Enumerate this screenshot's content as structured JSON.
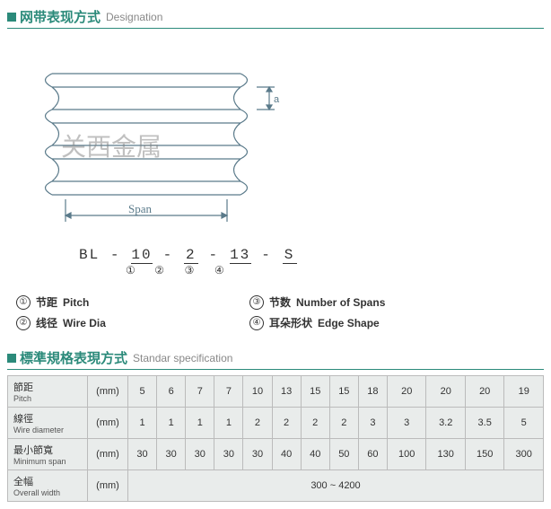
{
  "designation": {
    "header_zh": "网带表现方式",
    "header_en": "Designation",
    "diagram": {
      "span_label": "Span",
      "dim_a": "a",
      "watermark": "关西金属",
      "stroke": "#5a7a8a"
    },
    "code": {
      "prefix": "BL",
      "sep": "-",
      "parts": [
        "10",
        "2",
        "13",
        "S"
      ],
      "indices": [
        "①",
        "②",
        "③",
        "④"
      ]
    },
    "legend": [
      {
        "idx": "①",
        "zh": "节距",
        "en": "Pitch"
      },
      {
        "idx": "②",
        "zh": "线径",
        "en": "Wire Dia"
      },
      {
        "idx": "③",
        "zh": "节数",
        "en": "Number of Spans"
      },
      {
        "idx": "④",
        "zh": "耳朵形状",
        "en": "Edge Shape"
      }
    ]
  },
  "spec": {
    "header_zh": "標準規格表現方式",
    "header_en": "Standar specification",
    "unit_label": "(mm)",
    "rows": [
      {
        "zh": "節距",
        "en": "Pitch",
        "vals": [
          "5",
          "6",
          "7",
          "7",
          "10",
          "13",
          "15",
          "15",
          "18",
          "20",
          "20",
          "20",
          "19"
        ]
      },
      {
        "zh": "線徑",
        "en": "Wire diameter",
        "vals": [
          "1",
          "1",
          "1",
          "1",
          "2",
          "2",
          "2",
          "2",
          "3",
          "3",
          "3.2",
          "3.5",
          "5"
        ]
      },
      {
        "zh": "最小節寬",
        "en": "Minimum span",
        "vals": [
          "30",
          "30",
          "30",
          "30",
          "30",
          "40",
          "40",
          "50",
          "60",
          "100",
          "130",
          "150",
          "300"
        ]
      },
      {
        "zh": "全幅",
        "en": "Overall width",
        "span_val": "300 ~ 4200"
      }
    ]
  },
  "colors": {
    "teal": "#2b8a7a",
    "border": "#bbbbbb",
    "cellbg": "#e9eceb"
  }
}
